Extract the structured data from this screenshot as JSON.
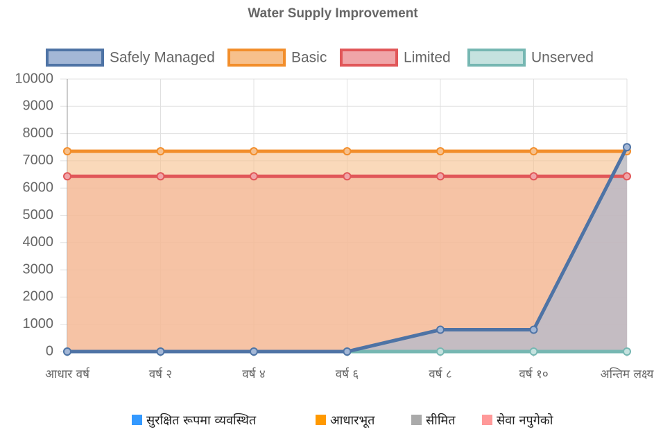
{
  "chart_data": {
    "type": "area",
    "title": "Water Supply Improvement",
    "categories": [
      "आधार वर्ष",
      "वर्ष २",
      "वर्ष ४",
      "वर्ष ६",
      "वर्ष ८",
      "वर्ष १०",
      "अन्तिम लक्ष्य"
    ],
    "series": [
      {
        "name": "Safely Managed",
        "color": "#4e73a5",
        "fill": "#a3b7d6",
        "values": [
          0,
          0,
          0,
          0,
          800,
          800,
          7500
        ]
      },
      {
        "name": "Basic",
        "color": "#f28e2b",
        "fill": "#f7c08c",
        "values": [
          7350,
          7350,
          7350,
          7350,
          7350,
          7350,
          7350
        ]
      },
      {
        "name": "Limited",
        "color": "#e15759",
        "fill": "#f0a5a8",
        "values": [
          6430,
          6430,
          6430,
          6430,
          6430,
          6430,
          6430
        ]
      },
      {
        "name": "Unserved",
        "color": "#76b7b2",
        "fill": "#c5e2df",
        "values": [
          0,
          0,
          0,
          0,
          0,
          0,
          0
        ]
      }
    ],
    "ylim": [
      0,
      10000
    ],
    "yticks": [
      0,
      1000,
      2000,
      3000,
      4000,
      5000,
      6000,
      7000,
      8000,
      9000,
      10000
    ],
    "grid": true,
    "legend": "top",
    "footer_legend": [
      {
        "label": "सुरक्षित रूपमा व्यवस्थित",
        "color": "#3399ff"
      },
      {
        "label": "आधारभूत",
        "color": "#ff9900"
      },
      {
        "label": "सीमित",
        "color": "#aaaaaa"
      },
      {
        "label": "सेवा नपुगेको",
        "color": "#ff9999"
      }
    ]
  }
}
